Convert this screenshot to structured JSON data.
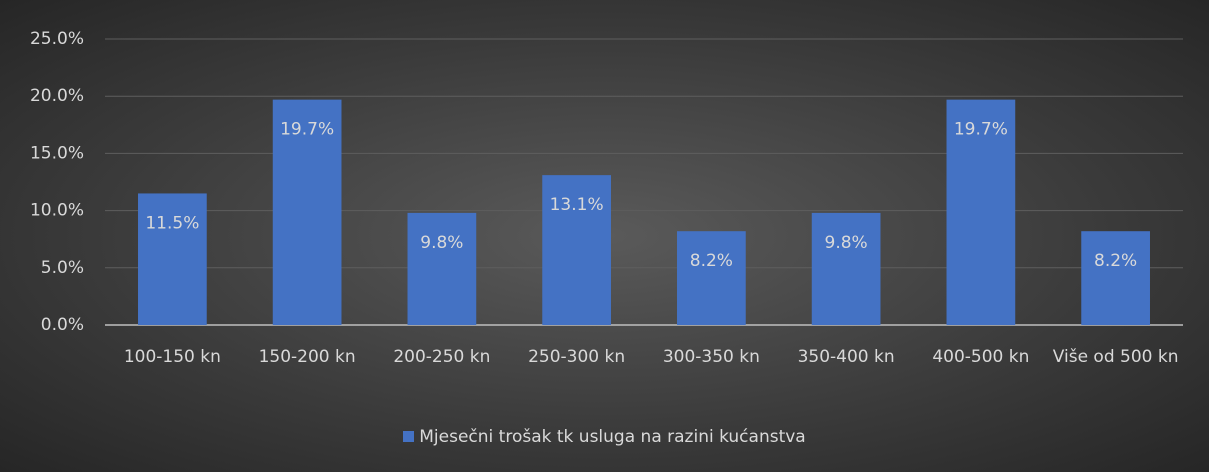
{
  "chart_data": {
    "type": "bar",
    "categories": [
      "100-150 kn",
      "150-200 kn",
      "200-250 kn",
      "250-300 kn",
      "300-350 kn",
      "350-400 kn",
      "400-500 kn",
      "Više od 500 kn"
    ],
    "series": [
      {
        "name": "Mjesečni trošak tk usluga na razini kućanstva",
        "color": "#4472c4",
        "values": [
          11.5,
          19.7,
          9.8,
          13.1,
          8.2,
          9.8,
          19.7,
          8.2
        ],
        "value_labels": [
          "11.5%",
          "19.7%",
          "9.8%",
          "13.1%",
          "8.2%",
          "9.8%",
          "19.7%",
          "8.2%"
        ]
      }
    ],
    "ylim": [
      0,
      25
    ],
    "yticks": [
      {
        "value": 0,
        "label": "0.0%"
      },
      {
        "value": 5,
        "label": "5.0%"
      },
      {
        "value": 10,
        "label": "10.0%"
      },
      {
        "value": 15,
        "label": "15.0%"
      },
      {
        "value": 20,
        "label": "20.0%"
      },
      {
        "value": 25,
        "label": "25.0%"
      }
    ],
    "grid": true,
    "legend": "bottom"
  }
}
